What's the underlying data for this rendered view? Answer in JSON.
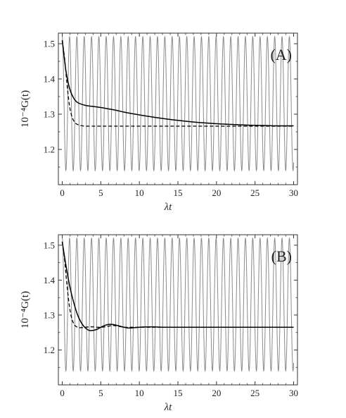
{
  "chart_data": [
    {
      "type": "line",
      "panel_label": "(A)",
      "xlabel": "λt",
      "ylabel": "10⁻⁴G(t)",
      "xlim": [
        -0.5,
        30.5
      ],
      "ylim": [
        1.1,
        1.53
      ],
      "x_ticks": [
        0,
        5,
        10,
        15,
        20,
        25,
        30
      ],
      "x_tick_labels": [
        "0",
        "5",
        "10",
        "15",
        "20",
        "25",
        "30"
      ],
      "y_ticks": [
        1.2,
        1.3,
        1.4,
        1.5
      ],
      "y_tick_labels": [
        "1.2",
        "1.3",
        "1.4",
        "1.5"
      ],
      "grid": false,
      "series": [
        {
          "style": "gray-oscillating",
          "color": "#8a8a8a",
          "form": "oscillation between 1.14 and 1.52 with period ~0.95",
          "min": 1.14,
          "max": 1.52,
          "period": 0.95,
          "x_range": [
            0,
            30
          ]
        },
        {
          "style": "solid",
          "color": "#000000",
          "x": [
            0,
            0.5,
            1,
            1.5,
            2,
            3,
            4,
            5,
            6,
            7,
            8,
            10,
            12,
            14,
            16,
            18,
            20,
            22,
            24,
            26,
            28,
            30
          ],
          "y": [
            1.51,
            1.42,
            1.37,
            1.345,
            1.333,
            1.325,
            1.322,
            1.319,
            1.315,
            1.311,
            1.306,
            1.298,
            1.291,
            1.285,
            1.28,
            1.276,
            1.273,
            1.271,
            1.269,
            1.268,
            1.267,
            1.267
          ]
        },
        {
          "style": "dashed",
          "color": "#000000",
          "x": [
            0,
            0.3,
            0.6,
            0.9,
            1.2,
            1.5,
            1.8,
            2.2,
            2.6,
            3,
            4,
            5,
            10,
            15,
            20,
            25,
            30
          ],
          "y": [
            1.51,
            1.46,
            1.39,
            1.33,
            1.297,
            1.281,
            1.273,
            1.269,
            1.267,
            1.266,
            1.266,
            1.266,
            1.266,
            1.266,
            1.266,
            1.266,
            1.266
          ]
        }
      ]
    },
    {
      "type": "line",
      "panel_label": "(B)",
      "xlabel": "λt",
      "ylabel": "10⁻⁴G(t)",
      "xlim": [
        -0.5,
        30.5
      ],
      "ylim": [
        1.1,
        1.53
      ],
      "x_ticks": [
        0,
        5,
        10,
        15,
        20,
        25,
        30
      ],
      "x_tick_labels": [
        "0",
        "5",
        "10",
        "15",
        "20",
        "25",
        "30"
      ],
      "y_ticks": [
        1.2,
        1.3,
        1.4,
        1.5
      ],
      "y_tick_labels": [
        "1.2",
        "1.3",
        "1.4",
        "1.5"
      ],
      "grid": false,
      "series": [
        {
          "style": "gray-oscillating",
          "color": "#8a8a8a",
          "form": "oscillation between 1.14 and 1.52 with period ~0.95",
          "min": 1.14,
          "max": 1.52,
          "period": 0.95,
          "x_range": [
            0,
            30
          ]
        },
        {
          "style": "solid",
          "color": "#000000",
          "x": [
            0,
            0.5,
            1,
            1.5,
            2,
            2.5,
            3,
            3.5,
            4,
            4.5,
            5,
            5.5,
            6,
            6.5,
            7,
            7.5,
            8,
            8.5,
            9,
            10,
            11,
            12,
            13,
            14,
            15,
            20,
            25,
            30
          ],
          "y": [
            1.51,
            1.44,
            1.38,
            1.335,
            1.3,
            1.277,
            1.263,
            1.256,
            1.256,
            1.259,
            1.265,
            1.27,
            1.273,
            1.273,
            1.271,
            1.268,
            1.265,
            1.263,
            1.263,
            1.265,
            1.266,
            1.266,
            1.265,
            1.265,
            1.265,
            1.265,
            1.265,
            1.265
          ]
        },
        {
          "style": "dashed",
          "color": "#000000",
          "x": [
            0,
            0.3,
            0.6,
            0.9,
            1.2,
            1.5,
            1.8,
            2.2,
            2.6,
            3,
            3.5,
            4,
            4.5,
            5,
            5.5,
            6,
            6.5,
            7,
            7.5,
            8,
            9,
            10,
            12,
            15,
            20,
            25,
            30
          ],
          "y": [
            1.51,
            1.46,
            1.39,
            1.33,
            1.293,
            1.275,
            1.267,
            1.264,
            1.264,
            1.265,
            1.266,
            1.266,
            1.265,
            1.265,
            1.266,
            1.268,
            1.27,
            1.269,
            1.267,
            1.265,
            1.265,
            1.265,
            1.265,
            1.265,
            1.265,
            1.265,
            1.265
          ]
        }
      ]
    }
  ]
}
